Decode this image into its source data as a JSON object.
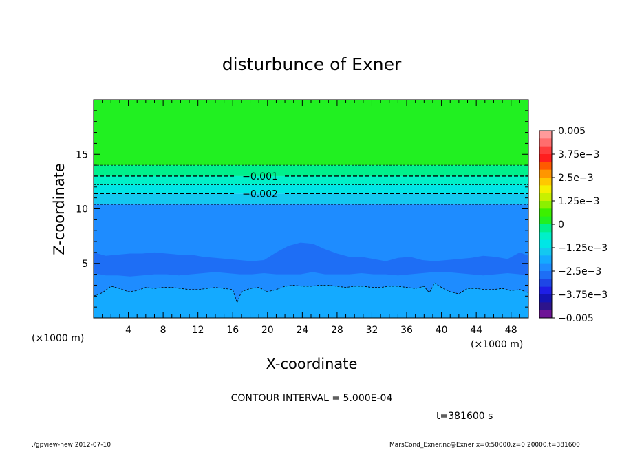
{
  "chart_data": {
    "type": "heatmap",
    "title": "disturbunce of Exner",
    "xlabel": "X-coordinate",
    "ylabel": "Z-coordinate",
    "x_unit": "(×1000 m)",
    "x_unit_right": "(×1000 m)",
    "xlim": [
      0,
      50
    ],
    "ylim": [
      0,
      20
    ],
    "x_ticks": [
      4,
      8,
      12,
      16,
      20,
      24,
      28,
      32,
      36,
      40,
      44,
      48
    ],
    "y_ticks": [
      5,
      10,
      15
    ],
    "contour_interval_text": "CONTOUR INTERVAL = 5.000E-04",
    "time_text": "t=381600 s",
    "contour_labels": [
      {
        "text": "−0.001",
        "value": -0.001,
        "z": 13.0
      },
      {
        "text": "−0.002",
        "value": -0.002,
        "z": 11.4
      }
    ],
    "bands": [
      {
        "zmin": 14.0,
        "zmax": 20.0,
        "value": 0,
        "color": "#21f021"
      },
      {
        "zmin": 13.0,
        "zmax": 14.0,
        "value": -0.00075,
        "color": "#00f08c"
      },
      {
        "zmin": 12.2,
        "zmax": 13.0,
        "value": -0.00125,
        "color": "#00f0c8"
      },
      {
        "zmin": 11.4,
        "zmax": 12.2,
        "value": -0.00175,
        "color": "#00e6e6"
      },
      {
        "zmin": 10.4,
        "zmax": 11.4,
        "value": -0.00225,
        "color": "#14c8f0"
      },
      {
        "zmin": 0.0,
        "zmax": 10.4,
        "value": -0.00275,
        "color": "#1e8cff"
      }
    ],
    "lower_layer": {
      "value": -0.00325,
      "color": "#1e6ef5",
      "top_z": [
        6.0,
        5.7,
        5.8,
        5.9,
        5.9,
        6.0,
        5.9,
        5.8,
        5.8,
        5.6,
        5.5,
        5.4,
        5.3,
        5.2,
        5.3,
        6.0,
        6.6,
        6.9,
        6.8,
        6.3,
        5.9,
        5.6,
        5.6,
        5.4,
        5.2,
        5.5,
        5.6,
        5.3,
        5.2,
        5.3,
        5.4,
        5.5,
        5.7,
        5.6,
        5.4,
        6.0,
        5.7
      ],
      "bottom_z": [
        4.1,
        3.9,
        3.9,
        3.8,
        3.9,
        4.0,
        4.0,
        3.9,
        4.0,
        4.1,
        4.2,
        4.1,
        4.0,
        4.0,
        4.1,
        4.0,
        4.0,
        4.0,
        4.2,
        4.0,
        4.0,
        4.0,
        4.1,
        4.0,
        4.0,
        3.9,
        4.0,
        4.1,
        4.2,
        4.2,
        4.1,
        4.0,
        3.9,
        4.0,
        4.1,
        4.0,
        3.9
      ],
      "x": [
        0,
        1.4,
        2.8,
        4.2,
        5.6,
        7.0,
        8.4,
        9.8,
        11.2,
        12.6,
        14.0,
        15.4,
        16.8,
        18.2,
        19.6,
        21.0,
        22.4,
        23.8,
        25.2,
        26.6,
        28.0,
        29.4,
        30.8,
        32.2,
        33.6,
        35.0,
        36.4,
        37.8,
        39.2,
        40.6,
        42.0,
        43.4,
        44.8,
        46.2,
        47.6,
        49.0,
        50.0
      ]
    },
    "surface_layer": {
      "value": -0.00225,
      "color": "#14aaff",
      "top_x": [
        0,
        1,
        2,
        3,
        4,
        5,
        6,
        7,
        8,
        9,
        10,
        11,
        12,
        13,
        14,
        15,
        16,
        16.5,
        17,
        18,
        19,
        20,
        21,
        22,
        23,
        24,
        25,
        26,
        27,
        28,
        29,
        30,
        31,
        32,
        33,
        34,
        35,
        36,
        37,
        38,
        38.6,
        39.2,
        40,
        41,
        42,
        43,
        44,
        45,
        46,
        47,
        48,
        49,
        50
      ],
      "top_z": [
        2.0,
        2.3,
        2.9,
        2.7,
        2.4,
        2.5,
        2.8,
        2.7,
        2.8,
        2.8,
        2.7,
        2.6,
        2.6,
        2.7,
        2.8,
        2.7,
        2.6,
        1.4,
        2.4,
        2.7,
        2.8,
        2.4,
        2.6,
        2.9,
        3.0,
        2.9,
        2.9,
        3.0,
        3.0,
        2.9,
        2.8,
        2.9,
        2.9,
        2.8,
        2.8,
        2.9,
        2.9,
        2.8,
        2.7,
        2.9,
        2.3,
        3.2,
        2.8,
        2.4,
        2.2,
        2.7,
        2.7,
        2.6,
        2.6,
        2.7,
        2.5,
        2.6,
        2.3
      ]
    },
    "colorbar": {
      "labels": [
        "0.005",
        "3.75e−3",
        "2.5e−3",
        "1.25e−3",
        "0",
        "−1.25e−3",
        "−2.5e−3",
        "−3.75e−3",
        "−0.005"
      ],
      "colors": [
        "#ff9a9a",
        "#ff6e6e",
        "#ff3c3c",
        "#ff1e1e",
        "#ff5a00",
        "#ff9600",
        "#ffc800",
        "#f5f000",
        "#c8f000",
        "#8cf000",
        "#3cf000",
        "#21f021",
        "#00f08c",
        "#00f0c8",
        "#00e6e6",
        "#14c8f0",
        "#14aaff",
        "#1e8cff",
        "#1e6ef5",
        "#1e46e6",
        "#1e1ee6",
        "#1414b4",
        "#2d148c",
        "#6e1496"
      ]
    }
  },
  "footer": {
    "left": "./gpview-new   2012-07-10",
    "right": "MarsCond_Exner.nc@Exner,x=0:50000,z=0:20000,t=381600"
  }
}
